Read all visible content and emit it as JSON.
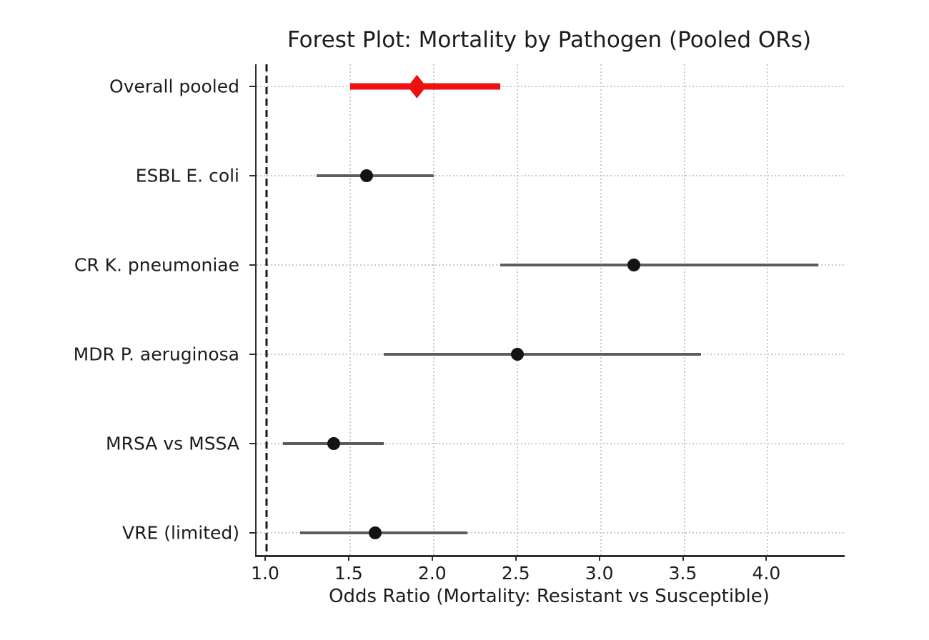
{
  "chart_data": {
    "type": "forest",
    "title": "Forest Plot: Mortality by Pathogen (Pooled ORs)",
    "xlabel": "Odds Ratio (Mortality: Resistant vs Susceptible)",
    "xlim": [
      0.94,
      4.46
    ],
    "reference_line_x": 1.0,
    "grid_style": "dotted",
    "legend": "none",
    "x_ticks": [
      {
        "value": 1.0,
        "label": "1.0"
      },
      {
        "value": 1.5,
        "label": "1.5"
      },
      {
        "value": 2.0,
        "label": "2.0"
      },
      {
        "value": 2.5,
        "label": "2.5"
      },
      {
        "value": 3.0,
        "label": "3.0"
      },
      {
        "value": 3.5,
        "label": "3.5"
      },
      {
        "value": 4.0,
        "label": "4.0"
      }
    ],
    "rows": [
      {
        "label": "Overall pooled",
        "odds_ratio": 1.9,
        "ci_low": 1.5,
        "ci_high": 2.4,
        "marker": "diamond",
        "is_pooled": true
      },
      {
        "label": "ESBL E. coli",
        "odds_ratio": 1.6,
        "ci_low": 1.3,
        "ci_high": 2.0,
        "marker": "circle",
        "is_pooled": false
      },
      {
        "label": "CR K. pneumoniae",
        "odds_ratio": 3.2,
        "ci_low": 2.4,
        "ci_high": 4.3,
        "marker": "circle",
        "is_pooled": false
      },
      {
        "label": "MDR P. aeruginosa",
        "odds_ratio": 2.5,
        "ci_low": 1.7,
        "ci_high": 3.6,
        "marker": "circle",
        "is_pooled": false
      },
      {
        "label": "MRSA vs MSSA",
        "odds_ratio": 1.4,
        "ci_low": 1.1,
        "ci_high": 1.7,
        "marker": "circle",
        "is_pooled": false
      },
      {
        "label": "VRE (limited)",
        "odds_ratio": 1.65,
        "ci_low": 1.2,
        "ci_high": 2.2,
        "marker": "circle",
        "is_pooled": false
      }
    ],
    "colors": {
      "pooled": "#ee1111",
      "ci_line": "#5d5d5d",
      "marker": "#141414",
      "grid": "#c9c9c9",
      "reference": "#161616",
      "axis": "#2e2e2e",
      "text": "#1c1c1c"
    }
  }
}
